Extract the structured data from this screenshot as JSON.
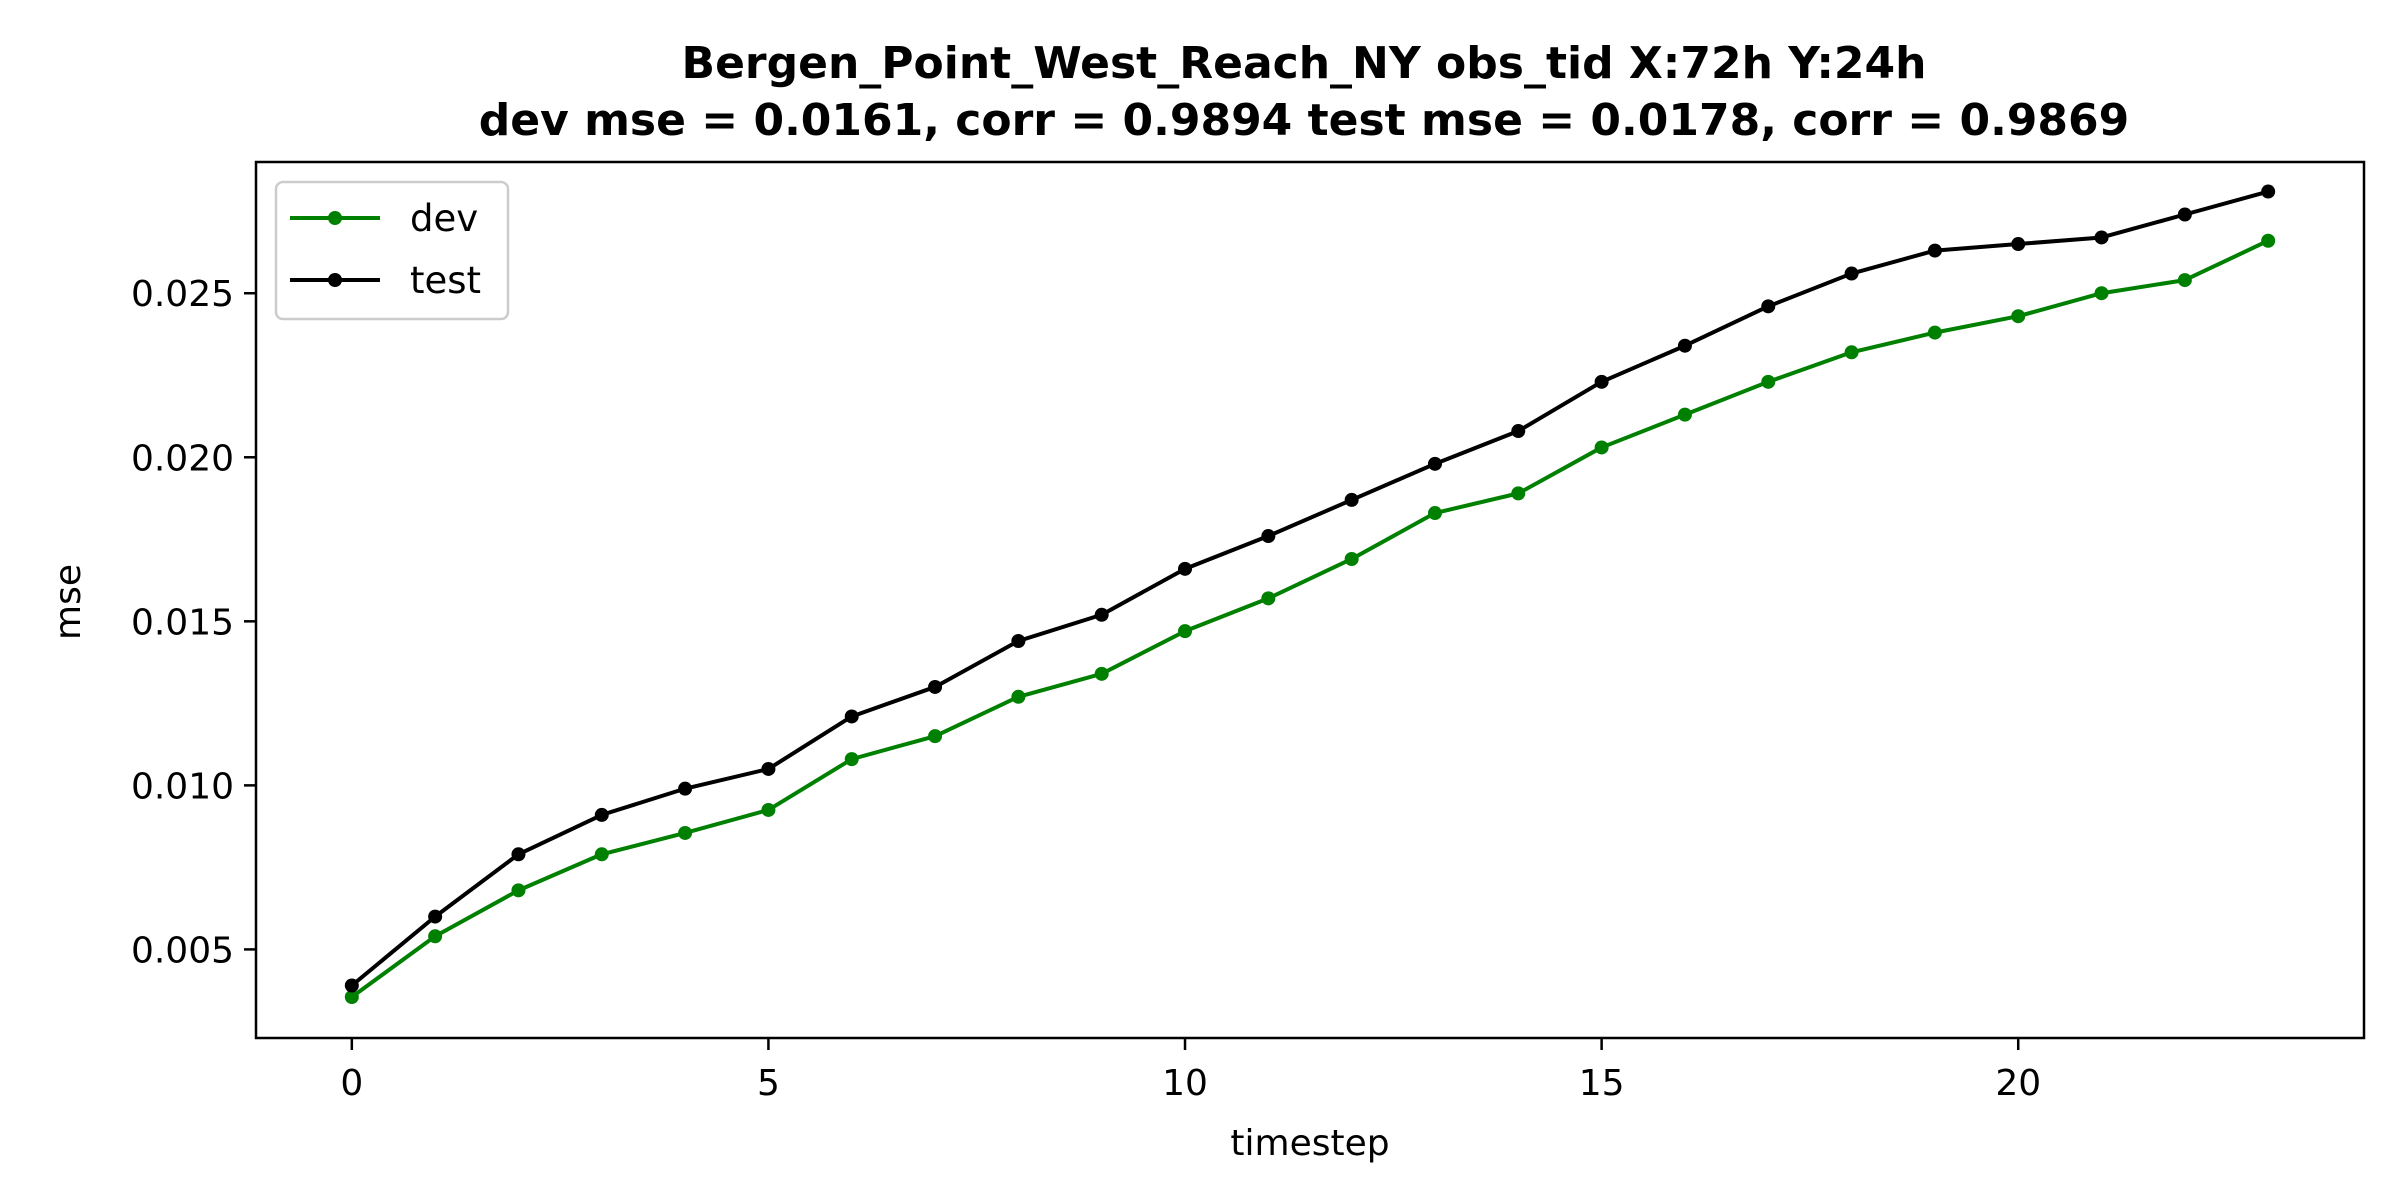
{
  "chart_data": {
    "type": "line",
    "title": "Bergen_Point_West_Reach_NY   obs_tid   X:72h   Y:24h",
    "subtitle": "dev mse = 0.0161, corr = 0.9894   test mse = 0.0178, corr = 0.9869",
    "xlabel": "timestep",
    "ylabel": "mse",
    "xlim": [
      -1.15,
      24.15
    ],
    "ylim": [
      0.0023,
      0.029
    ],
    "xticks": [
      0,
      5,
      10,
      15,
      20
    ],
    "xtick_labels": [
      "0",
      "5",
      "10",
      "15",
      "20"
    ],
    "yticks": [
      0.005,
      0.01,
      0.015,
      0.02,
      0.025
    ],
    "ytick_labels": [
      "0.005",
      "0.010",
      "0.015",
      "0.020",
      "0.025"
    ],
    "grid": false,
    "legend_position": "top-left",
    "x": [
      0,
      1,
      2,
      3,
      4,
      5,
      6,
      7,
      8,
      9,
      10,
      11,
      12,
      13,
      14,
      15,
      16,
      17,
      18,
      19,
      20,
      21,
      22,
      23
    ],
    "series": [
      {
        "name": "dev",
        "color": "#008000",
        "values": [
          0.00355,
          0.0054,
          0.0068,
          0.0079,
          0.00855,
          0.00925,
          0.0108,
          0.0115,
          0.0127,
          0.0134,
          0.0147,
          0.0157,
          0.0169,
          0.0183,
          0.0189,
          0.0203,
          0.0213,
          0.0223,
          0.0232,
          0.0238,
          0.0243,
          0.025,
          0.0254,
          0.0266
        ]
      },
      {
        "name": "test",
        "color": "#000000",
        "values": [
          0.0039,
          0.006,
          0.0079,
          0.0091,
          0.0099,
          0.0105,
          0.0121,
          0.013,
          0.0144,
          0.0152,
          0.0166,
          0.0176,
          0.0187,
          0.0198,
          0.0208,
          0.0223,
          0.0234,
          0.0246,
          0.0256,
          0.0263,
          0.0265,
          0.0267,
          0.0274,
          0.0281
        ]
      }
    ]
  }
}
